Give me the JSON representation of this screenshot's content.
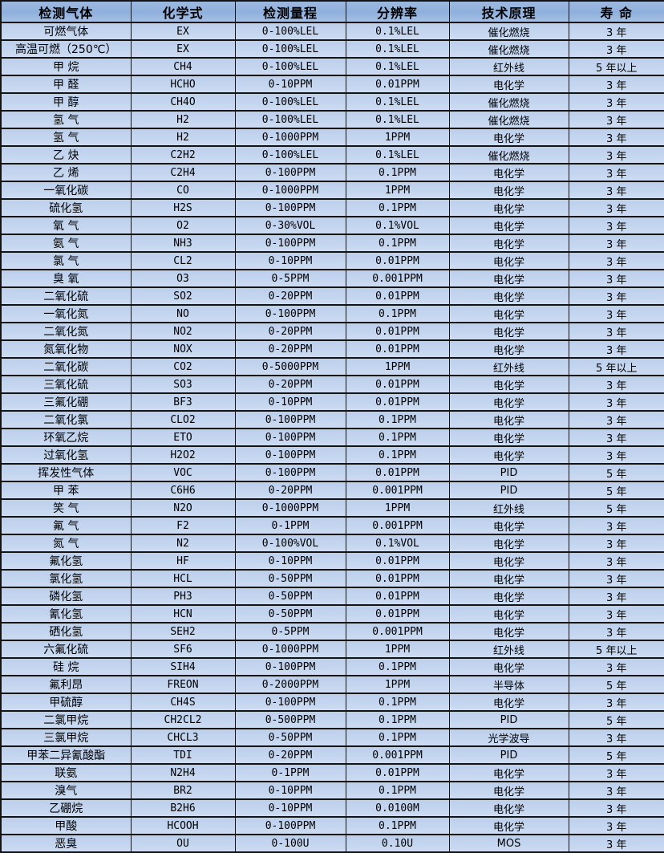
{
  "table": {
    "columns": [
      "检测气体",
      "化学式",
      "检测量程",
      "分辨率",
      "技术原理",
      "寿 命"
    ],
    "rows": [
      [
        "可燃气体",
        "EX",
        "0-100%LEL",
        "0.1%LEL",
        "催化燃烧",
        "3 年"
      ],
      [
        "高温可燃（250℃）",
        "EX",
        "0-100%LEL",
        "0.1%LEL",
        "催化燃烧",
        "3 年"
      ],
      [
        "甲 烷",
        "CH4",
        "0-100%LEL",
        "0.1%LEL",
        "红外线",
        "5 年以上"
      ],
      [
        "甲 醛",
        "HCHO",
        "0-10PPM",
        "0.01PPM",
        "电化学",
        "3 年"
      ],
      [
        "甲 醇",
        "CH4O",
        "0-100%LEL",
        "0.1%LEL",
        "催化燃烧",
        "3 年"
      ],
      [
        "氢 气",
        "H2",
        "0-100%LEL",
        "0.1%LEL",
        "催化燃烧",
        "3 年"
      ],
      [
        "氢 气",
        "H2",
        "0-1000PPM",
        "1PPM",
        "电化学",
        "3 年"
      ],
      [
        "乙 炔",
        "C2H2",
        "0-100%LEL",
        "0.1%LEL",
        "催化燃烧",
        "3 年"
      ],
      [
        "乙 烯",
        "C2H4",
        "0-100PPM",
        "0.1PPM",
        "电化学",
        "3 年"
      ],
      [
        "一氧化碳",
        "CO",
        "0-1000PPM",
        "1PPM",
        "电化学",
        "3 年"
      ],
      [
        "硫化氢",
        "H2S",
        "0-100PPM",
        "0.1PPM",
        "电化学",
        "3 年"
      ],
      [
        "氧 气",
        "O2",
        "0-30%VOL",
        "0.1%VOL",
        "电化学",
        "3 年"
      ],
      [
        "氨 气",
        "NH3",
        "0-100PPM",
        "0.1PPM",
        "电化学",
        "3 年"
      ],
      [
        "氯 气",
        "CL2",
        "0-10PPM",
        "0.01PPM",
        "电化学",
        "3 年"
      ],
      [
        "臭 氧",
        "O3",
        "0-5PPM",
        "0.001PPM",
        "电化学",
        "3 年"
      ],
      [
        "二氧化硫",
        "SO2",
        "0-20PPM",
        "0.01PPM",
        "电化学",
        "3 年"
      ],
      [
        "一氧化氮",
        "NO",
        "0-100PPM",
        "0.1PPM",
        "电化学",
        "3 年"
      ],
      [
        "二氧化氮",
        "NO2",
        "0-20PPM",
        "0.01PPM",
        "电化学",
        "3 年"
      ],
      [
        "氮氧化物",
        "NOX",
        "0-20PPM",
        "0.01PPM",
        "电化学",
        "3 年"
      ],
      [
        "二氧化碳",
        "CO2",
        "0-5000PPM",
        "1PPM",
        "红外线",
        "5 年以上"
      ],
      [
        "三氧化硫",
        "SO3",
        "0-20PPM",
        "0.01PPM",
        "电化学",
        "3 年"
      ],
      [
        "三氟化硼",
        "BF3",
        "0-10PPM",
        "0.01PPM",
        "电化学",
        "3 年"
      ],
      [
        "二氧化氯",
        "CLO2",
        "0-100PPM",
        "0.1PPM",
        "电化学",
        "3 年"
      ],
      [
        "环氧乙烷",
        "ETO",
        "0-100PPM",
        "0.1PPM",
        "电化学",
        "3 年"
      ],
      [
        "过氧化氢",
        "H2O2",
        "0-100PPM",
        "0.1PPM",
        "电化学",
        "3 年"
      ],
      [
        "挥发性气体",
        "VOC",
        "0-100PPM",
        "0.01PPM",
        "PID",
        "5 年"
      ],
      [
        "甲 苯",
        "C6H6",
        "0-20PPM",
        "0.001PPM",
        "PID",
        "5 年"
      ],
      [
        "笑 气",
        "N2O",
        "0-1000PPM",
        "1PPM",
        "红外线",
        "5 年"
      ],
      [
        "氟 气",
        "F2",
        "0-1PPM",
        "0.001PPM",
        "电化学",
        "3 年"
      ],
      [
        "氮 气",
        "N2",
        "0-100%VOL",
        "0.1%VOL",
        "电化学",
        "3 年"
      ],
      [
        "氟化氢",
        "HF",
        "0-10PPM",
        "0.01PPM",
        "电化学",
        "3 年"
      ],
      [
        "氯化氢",
        "HCL",
        "0-50PPM",
        "0.01PPM",
        "电化学",
        "3 年"
      ],
      [
        "磷化氢",
        "PH3",
        "0-50PPM",
        "0.01PPM",
        "电化学",
        "3 年"
      ],
      [
        "氰化氢",
        "HCN",
        "0-50PPM",
        "0.01PPM",
        "电化学",
        "3 年"
      ],
      [
        "硒化氢",
        "SEH2",
        "0-5PPM",
        "0.001PPM",
        "电化学",
        "3 年"
      ],
      [
        "六氟化硫",
        "SF6",
        "0-1000PPM",
        "1PPM",
        "红外线",
        "5 年以上"
      ],
      [
        "硅 烷",
        "SIH4",
        "0-100PPM",
        "0.1PPM",
        "电化学",
        "3 年"
      ],
      [
        "氟利昂",
        "FREON",
        "0-2000PPM",
        "1PPM",
        "半导体",
        "5 年"
      ],
      [
        "甲硫醇",
        "CH4S",
        "0-100PPM",
        "0.1PPM",
        "电化学",
        "3 年"
      ],
      [
        "二氯甲烷",
        "CH2CL2",
        "0-500PPM",
        "0.1PPM",
        "PID",
        "5 年"
      ],
      [
        "三氯甲烷",
        "CHCL3",
        "0-50PPM",
        "0.1PPM",
        "光学波导",
        "3 年"
      ],
      [
        "甲苯二异氰酸酯",
        "TDI",
        "0-20PPM",
        "0.001PPM",
        "PID",
        "5 年"
      ],
      [
        "联氨",
        "N2H4",
        "0-1PPM",
        "0.01PPM",
        "电化学",
        "3 年"
      ],
      [
        "溴气",
        "BR2",
        "0-10PPM",
        "0.1PPM",
        "电化学",
        "3 年"
      ],
      [
        "乙硼烷",
        "B2H6",
        "0-10PPM",
        "0.0100M",
        "电化学",
        "3 年"
      ],
      [
        "甲酸",
        "HCOOH",
        "0-100PPM",
        "0.1PPM",
        "电化学",
        "3 年"
      ],
      [
        "恶臭",
        "OU",
        "0-100U",
        "0.10U",
        "MOS",
        "3 年"
      ]
    ]
  },
  "colors": {
    "header_bg": "#8fb0dc",
    "row_bg": "#c3d5ee",
    "border": "#141414",
    "text": "#000000"
  }
}
